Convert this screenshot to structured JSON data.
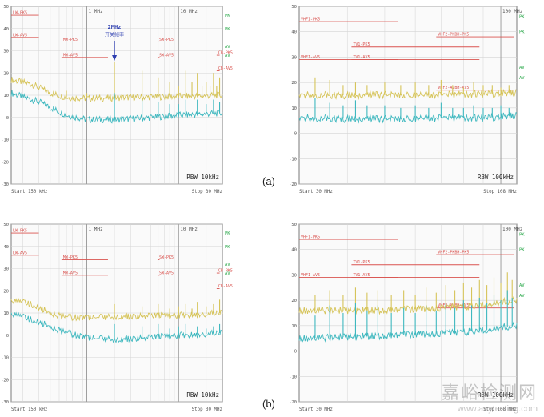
{
  "labels": {
    "a": "(a)",
    "b": "(b)"
  },
  "watermark": {
    "cn": "嘉峪检测网",
    "en": "www.anytesting.com"
  },
  "colors": {
    "yellow": "#d6c45a",
    "cyan": "#3fb8bf",
    "limit": "#d9534f",
    "grid": "#d4d4d4",
    "frame": "#7a7a7a",
    "axis_text": "#555555",
    "green": "#2aa84a",
    "annot": "#2d3eb0"
  },
  "chart_data": [
    {
      "id": "a-conducted",
      "type": "line",
      "ylim": [
        -30,
        50
      ],
      "yticks": [
        50,
        40,
        30,
        20,
        10,
        0,
        -10,
        -20,
        -30
      ],
      "xscale": "log",
      "xlim": [
        0.15,
        30
      ],
      "x_markers": [
        {
          "x": 1,
          "label": "1 MHz"
        },
        {
          "x": 10,
          "label": "10 MHz"
        }
      ],
      "start_label": "Start 150 kHz",
      "stop_label": "Stop 30 MHz",
      "rbw": "RBW 10kHz",
      "limits": [
        {
          "label": "LW-PK5",
          "x": [
            0.15,
            0.3
          ],
          "y": 46
        },
        {
          "label": "LW-AV5",
          "x": [
            0.15,
            0.3
          ],
          "y": 36
        },
        {
          "label": "MW-PK5",
          "x": [
            0.53,
            1.7
          ],
          "y": 34
        },
        {
          "label": "MW-AV5",
          "x": [
            0.53,
            1.7
          ],
          "y": 27
        },
        {
          "label": "SW-PK5",
          "x": [
            5.9,
            6.2
          ],
          "y": 34
        },
        {
          "label": "SW-AV5",
          "x": [
            5.9,
            6.2
          ],
          "y": 27
        },
        {
          "label": "CB-PK5",
          "x": [
            26,
            28
          ],
          "y": 28
        },
        {
          "label": "CB-AV5",
          "x": [
            26,
            28
          ],
          "y": 21
        }
      ],
      "right_tags": [
        {
          "y": 46,
          "text": "PK"
        },
        {
          "y": 40,
          "text": "PK"
        },
        {
          "y": 32,
          "text": "AV"
        },
        {
          "y": 28,
          "text": "AV"
        }
      ],
      "annotation": {
        "x": 2,
        "text1": "2MHz",
        "text2": "开关频率"
      },
      "series": [
        {
          "color_key": "yellow",
          "base": [
            [
              0.15,
              17
            ],
            [
              0.25,
              15
            ],
            [
              0.4,
              11
            ],
            [
              0.6,
              9
            ],
            [
              1,
              8.5
            ],
            [
              3,
              9
            ],
            [
              10,
              9.5
            ],
            [
              30,
              10
            ]
          ],
          "spikes": [
            [
              0.6,
              12
            ],
            [
              1,
              11
            ],
            [
              2,
              25
            ],
            [
              4,
              21
            ],
            [
              6,
              18
            ],
            [
              8,
              16
            ],
            [
              10,
              14
            ],
            [
              12,
              21
            ],
            [
              14,
              16
            ],
            [
              16,
              20
            ],
            [
              18,
              14
            ],
            [
              20,
              16
            ],
            [
              22,
              14
            ],
            [
              24,
              20
            ],
            [
              26,
              14
            ],
            [
              28,
              18
            ]
          ]
        },
        {
          "color_key": "cyan",
          "base": [
            [
              0.15,
              11
            ],
            [
              0.3,
              7
            ],
            [
              0.6,
              1
            ],
            [
              1,
              -1
            ],
            [
              2,
              -1
            ],
            [
              5,
              0
            ],
            [
              10,
              1
            ],
            [
              30,
              2
            ]
          ],
          "spikes": [
            [
              2,
              11
            ],
            [
              4,
              8
            ],
            [
              6,
              7
            ],
            [
              8,
              6
            ],
            [
              10,
              6
            ],
            [
              12,
              8
            ],
            [
              16,
              8
            ],
            [
              20,
              6
            ],
            [
              24,
              8
            ],
            [
              28,
              7
            ]
          ]
        }
      ]
    },
    {
      "id": "a-radiated",
      "type": "line",
      "ylim": [
        -20,
        50
      ],
      "yticks": [
        50,
        40,
        30,
        20,
        10,
        0,
        -10,
        -20
      ],
      "xscale": "log",
      "xlim": [
        30,
        110
      ],
      "x_markers": [
        {
          "x": 100,
          "label": "100 MHz"
        }
      ],
      "start_label": "Start 30 MHz",
      "stop_label": "Stop 108 MHz",
      "rbw": "RBW 100kHz",
      "limits": [
        {
          "label": "VHF1-PK5",
          "x": [
            30,
            54
          ],
          "y": 44
        },
        {
          "label": "TV1-PK5",
          "x": [
            41,
            88
          ],
          "y": 34
        },
        {
          "label": "VHF1-AV5",
          "x": [
            30,
            54
          ],
          "y": 29
        },
        {
          "label": "TV1-AV5",
          "x": [
            41,
            88
          ],
          "y": 29
        },
        {
          "label": "VHF2-PKBH-PK5",
          "x": [
            68,
            108
          ],
          "y": 38
        },
        {
          "label": "VHF2-AVBH-AV5",
          "x": [
            68,
            108
          ],
          "y": 17
        }
      ],
      "right_tags": [
        {
          "y": 46,
          "text": "PK"
        },
        {
          "y": 40,
          "text": "PK"
        },
        {
          "y": 26,
          "text": "AV"
        },
        {
          "y": 22,
          "text": "AV"
        }
      ],
      "series": [
        {
          "color_key": "yellow",
          "base": [
            [
              30,
              15
            ],
            [
              50,
              15
            ],
            [
              70,
              15
            ],
            [
              90,
              15.5
            ],
            [
              108,
              16
            ]
          ],
          "spikes": [
            [
              33,
              22
            ],
            [
              36,
              21
            ],
            [
              39,
              19
            ],
            [
              42,
              20
            ],
            [
              45,
              19
            ],
            [
              50,
              20
            ],
            [
              55,
              19
            ],
            [
              60,
              20
            ],
            [
              65,
              19
            ],
            [
              70,
              21
            ],
            [
              75,
              19
            ],
            [
              80,
              18
            ],
            [
              85,
              20
            ],
            [
              90,
              19
            ],
            [
              95,
              19
            ],
            [
              100,
              18
            ],
            [
              105,
              19
            ]
          ]
        },
        {
          "color_key": "cyan",
          "base": [
            [
              30,
              6
            ],
            [
              50,
              5.5
            ],
            [
              70,
              6
            ],
            [
              90,
              6
            ],
            [
              108,
              7
            ]
          ],
          "spikes": [
            [
              33,
              14
            ],
            [
              36,
              12
            ],
            [
              39,
              11
            ],
            [
              42,
              13
            ],
            [
              45,
              11
            ],
            [
              50,
              11
            ],
            [
              55,
              10
            ],
            [
              60,
              11
            ],
            [
              65,
              10
            ],
            [
              70,
              12
            ],
            [
              75,
              10
            ],
            [
              80,
              10
            ],
            [
              85,
              11
            ],
            [
              90,
              10
            ],
            [
              95,
              10
            ],
            [
              100,
              11
            ],
            [
              105,
              10
            ]
          ]
        }
      ]
    },
    {
      "id": "b-conducted",
      "type": "line",
      "ylim": [
        -30,
        50
      ],
      "yticks": [
        50,
        40,
        30,
        20,
        10,
        0,
        -10,
        -20,
        -30
      ],
      "xscale": "log",
      "xlim": [
        0.15,
        30
      ],
      "x_markers": [
        {
          "x": 1,
          "label": "1 MHz"
        },
        {
          "x": 10,
          "label": "10 MHz"
        }
      ],
      "start_label": "Start 150 kHz",
      "stop_label": "Stop 30 MHz",
      "rbw": "RBW 10kHz",
      "limits": [
        {
          "label": "LW-PK5",
          "x": [
            0.15,
            0.3
          ],
          "y": 46
        },
        {
          "label": "LW-AV5",
          "x": [
            0.15,
            0.3
          ],
          "y": 36
        },
        {
          "label": "MW-PK5",
          "x": [
            0.53,
            1.7
          ],
          "y": 34
        },
        {
          "label": "MW-AV5",
          "x": [
            0.53,
            1.7
          ],
          "y": 27
        },
        {
          "label": "SW-PK5",
          "x": [
            5.9,
            6.2
          ],
          "y": 34
        },
        {
          "label": "SW-AV5",
          "x": [
            5.9,
            6.2
          ],
          "y": 27
        },
        {
          "label": "CB-PK5",
          "x": [
            26,
            28
          ],
          "y": 28
        },
        {
          "label": "CB-AV5",
          "x": [
            26,
            28
          ],
          "y": 21
        }
      ],
      "right_tags": [
        {
          "y": 46,
          "text": "PK"
        },
        {
          "y": 40,
          "text": "PK"
        },
        {
          "y": 32,
          "text": "AV"
        },
        {
          "y": 28,
          "text": "AV"
        }
      ],
      "series": [
        {
          "color_key": "yellow",
          "base": [
            [
              0.15,
              16
            ],
            [
              0.25,
              14
            ],
            [
              0.4,
              10
            ],
            [
              0.6,
              8
            ],
            [
              1,
              8
            ],
            [
              3,
              8.5
            ],
            [
              10,
              9
            ],
            [
              30,
              10
            ]
          ],
          "spikes": [
            [
              2,
              14
            ],
            [
              4,
              13
            ],
            [
              6,
              14
            ],
            [
              8,
              12
            ],
            [
              10,
              13
            ],
            [
              12,
              14
            ],
            [
              14,
              12
            ],
            [
              16,
              15
            ],
            [
              20,
              13
            ],
            [
              24,
              14
            ],
            [
              28,
              16
            ]
          ]
        },
        {
          "color_key": "cyan",
          "base": [
            [
              0.15,
              10
            ],
            [
              0.3,
              6
            ],
            [
              0.6,
              1
            ],
            [
              1,
              -1
            ],
            [
              2,
              -2
            ],
            [
              5,
              -1
            ],
            [
              10,
              0
            ],
            [
              30,
              1
            ]
          ],
          "spikes": [
            [
              2,
              5
            ],
            [
              4,
              4
            ],
            [
              6,
              5
            ],
            [
              8,
              3
            ],
            [
              10,
              4
            ],
            [
              12,
              5
            ],
            [
              16,
              4
            ],
            [
              20,
              3
            ],
            [
              24,
              4
            ],
            [
              28,
              5
            ]
          ]
        }
      ]
    },
    {
      "id": "b-radiated",
      "type": "line",
      "ylim": [
        -20,
        50
      ],
      "yticks": [
        50,
        40,
        30,
        20,
        10,
        0,
        -10,
        -20
      ],
      "xscale": "log",
      "xlim": [
        30,
        110
      ],
      "x_markers": [
        {
          "x": 100,
          "label": "100 MHz"
        }
      ],
      "start_label": "Start 30 MHz",
      "stop_label": "Stop 108 MHz",
      "rbw": "RBW 100kHz",
      "limits": [
        {
          "label": "VHF1-PK5",
          "x": [
            30,
            54
          ],
          "y": 44
        },
        {
          "label": "TV1-PK5",
          "x": [
            41,
            88
          ],
          "y": 34
        },
        {
          "label": "VHF1-AV5",
          "x": [
            30,
            54
          ],
          "y": 29
        },
        {
          "label": "TV1-AV5",
          "x": [
            41,
            88
          ],
          "y": 29
        },
        {
          "label": "VHF2-PKBH-PK5",
          "x": [
            68,
            108
          ],
          "y": 38
        },
        {
          "label": "VHF2-AVBH-AV5",
          "x": [
            68,
            108
          ],
          "y": 17
        }
      ],
      "right_tags": [
        {
          "y": 46,
          "text": "PK"
        },
        {
          "y": 40,
          "text": "PK"
        },
        {
          "y": 26,
          "text": "AV"
        },
        {
          "y": 22,
          "text": "AV"
        }
      ],
      "series": [
        {
          "color_key": "yellow",
          "base": [
            [
              30,
              16
            ],
            [
              50,
              16
            ],
            [
              70,
              17
            ],
            [
              90,
              18
            ],
            [
              108,
              20
            ]
          ],
          "spikes": [
            [
              33,
              22
            ],
            [
              36,
              24
            ],
            [
              39,
              22
            ],
            [
              42,
              25
            ],
            [
              45,
              23
            ],
            [
              48,
              24
            ],
            [
              52,
              22
            ],
            [
              56,
              24
            ],
            [
              60,
              22
            ],
            [
              64,
              25
            ],
            [
              68,
              23
            ],
            [
              72,
              26
            ],
            [
              76,
              24
            ],
            [
              80,
              27
            ],
            [
              84,
              25
            ],
            [
              88,
              28
            ],
            [
              92,
              26
            ],
            [
              96,
              29
            ],
            [
              100,
              27
            ],
            [
              104,
              31
            ],
            [
              107,
              28
            ]
          ]
        },
        {
          "color_key": "cyan",
          "base": [
            [
              30,
              5
            ],
            [
              50,
              6
            ],
            [
              70,
              7
            ],
            [
              90,
              8
            ],
            [
              108,
              10
            ]
          ],
          "spikes": [
            [
              33,
              14
            ],
            [
              36,
              18
            ],
            [
              39,
              15
            ],
            [
              42,
              19
            ],
            [
              45,
              16
            ],
            [
              48,
              18
            ],
            [
              52,
              15
            ],
            [
              56,
              17
            ],
            [
              60,
              15
            ],
            [
              64,
              18
            ],
            [
              68,
              16
            ],
            [
              72,
              19
            ],
            [
              76,
              17
            ],
            [
              80,
              20
            ],
            [
              84,
              18
            ],
            [
              88,
              21
            ],
            [
              92,
              19
            ],
            [
              96,
              22
            ],
            [
              100,
              20
            ],
            [
              104,
              24
            ],
            [
              107,
              21
            ]
          ]
        }
      ]
    }
  ]
}
